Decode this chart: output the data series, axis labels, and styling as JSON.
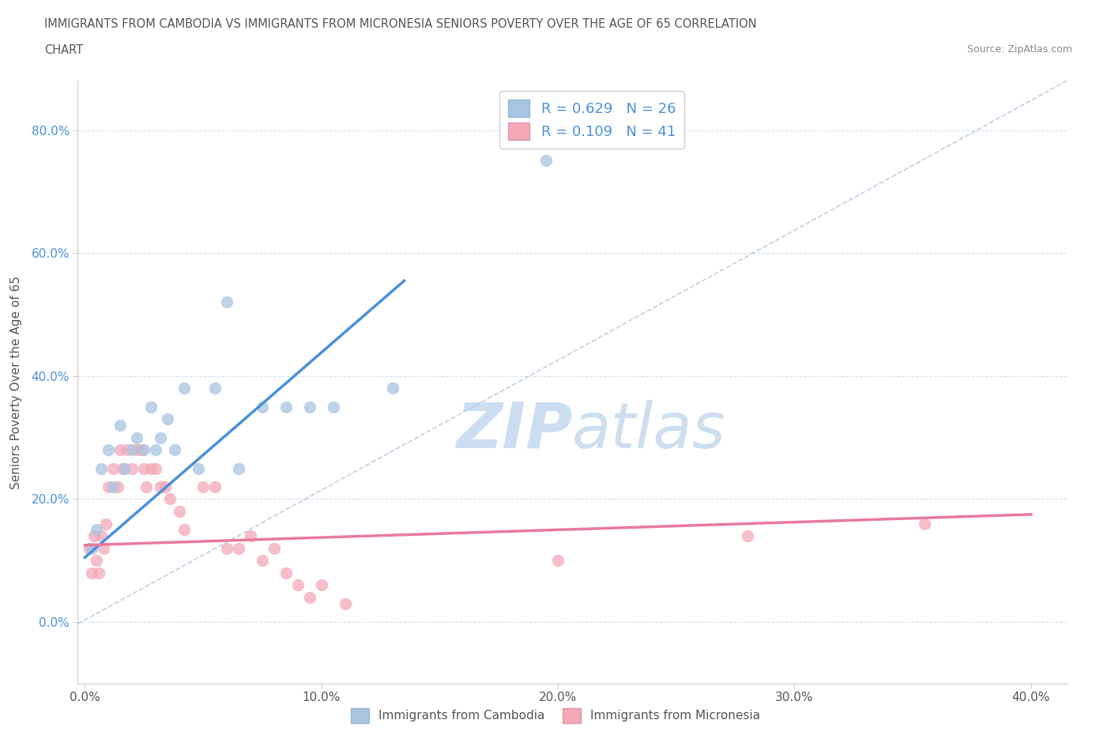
{
  "title_line1": "IMMIGRANTS FROM CAMBODIA VS IMMIGRANTS FROM MICRONESIA SENIORS POVERTY OVER THE AGE OF 65 CORRELATION",
  "title_line2": "CHART",
  "source": "Source: ZipAtlas.com",
  "ylabel": "Seniors Poverty Over the Age of 65",
  "xlabel": "",
  "legend_label1": "Immigrants from Cambodia",
  "legend_label2": "Immigrants from Micronesia",
  "r1": 0.629,
  "n1": 26,
  "r2": 0.109,
  "n2": 41,
  "xlim": [
    -0.003,
    0.415
  ],
  "ylim": [
    -0.1,
    0.88
  ],
  "xticks": [
    0.0,
    0.1,
    0.2,
    0.3,
    0.4
  ],
  "yticks": [
    0.0,
    0.2,
    0.4,
    0.6,
    0.8
  ],
  "color_cambodia": "#a8c4e0",
  "color_micronesia": "#f4a8b8",
  "trendline_color_cambodia": "#4a90d9",
  "trendline_color_micronesia": "#e87a9a",
  "diagonal_color": "#b0c4de",
  "watermark_color": "#d0e4f4",
  "scatter_cambodia_x": [
    0.003,
    0.005,
    0.007,
    0.01,
    0.012,
    0.015,
    0.017,
    0.02,
    0.022,
    0.025,
    0.028,
    0.03,
    0.032,
    0.035,
    0.038,
    0.042,
    0.048,
    0.055,
    0.06,
    0.065,
    0.075,
    0.085,
    0.095,
    0.105,
    0.13,
    0.195
  ],
  "scatter_cambodia_y": [
    0.12,
    0.15,
    0.25,
    0.28,
    0.22,
    0.32,
    0.25,
    0.28,
    0.3,
    0.28,
    0.35,
    0.28,
    0.3,
    0.33,
    0.28,
    0.38,
    0.25,
    0.38,
    0.52,
    0.25,
    0.35,
    0.35,
    0.35,
    0.35,
    0.38,
    0.75
  ],
  "scatter_micronesia_x": [
    0.002,
    0.003,
    0.004,
    0.005,
    0.006,
    0.007,
    0.008,
    0.009,
    0.01,
    0.012,
    0.014,
    0.015,
    0.016,
    0.018,
    0.02,
    0.022,
    0.024,
    0.025,
    0.026,
    0.028,
    0.03,
    0.032,
    0.034,
    0.036,
    0.04,
    0.042,
    0.05,
    0.055,
    0.06,
    0.065,
    0.07,
    0.075,
    0.08,
    0.085,
    0.09,
    0.095,
    0.1,
    0.11,
    0.2,
    0.28,
    0.355
  ],
  "scatter_micronesia_y": [
    0.12,
    0.08,
    0.14,
    0.1,
    0.08,
    0.14,
    0.12,
    0.16,
    0.22,
    0.25,
    0.22,
    0.28,
    0.25,
    0.28,
    0.25,
    0.28,
    0.28,
    0.25,
    0.22,
    0.25,
    0.25,
    0.22,
    0.22,
    0.2,
    0.18,
    0.15,
    0.22,
    0.22,
    0.12,
    0.12,
    0.14,
    0.1,
    0.12,
    0.08,
    0.06,
    0.04,
    0.06,
    0.03,
    0.1,
    0.14,
    0.16
  ],
  "trendline_cambodia_x0": 0.0,
  "trendline_cambodia_y0": 0.105,
  "trendline_cambodia_x1": 0.135,
  "trendline_cambodia_y1": 0.555,
  "trendline_micronesia_x0": 0.0,
  "trendline_micronesia_y0": 0.125,
  "trendline_micronesia_x1": 0.4,
  "trendline_micronesia_y1": 0.175
}
